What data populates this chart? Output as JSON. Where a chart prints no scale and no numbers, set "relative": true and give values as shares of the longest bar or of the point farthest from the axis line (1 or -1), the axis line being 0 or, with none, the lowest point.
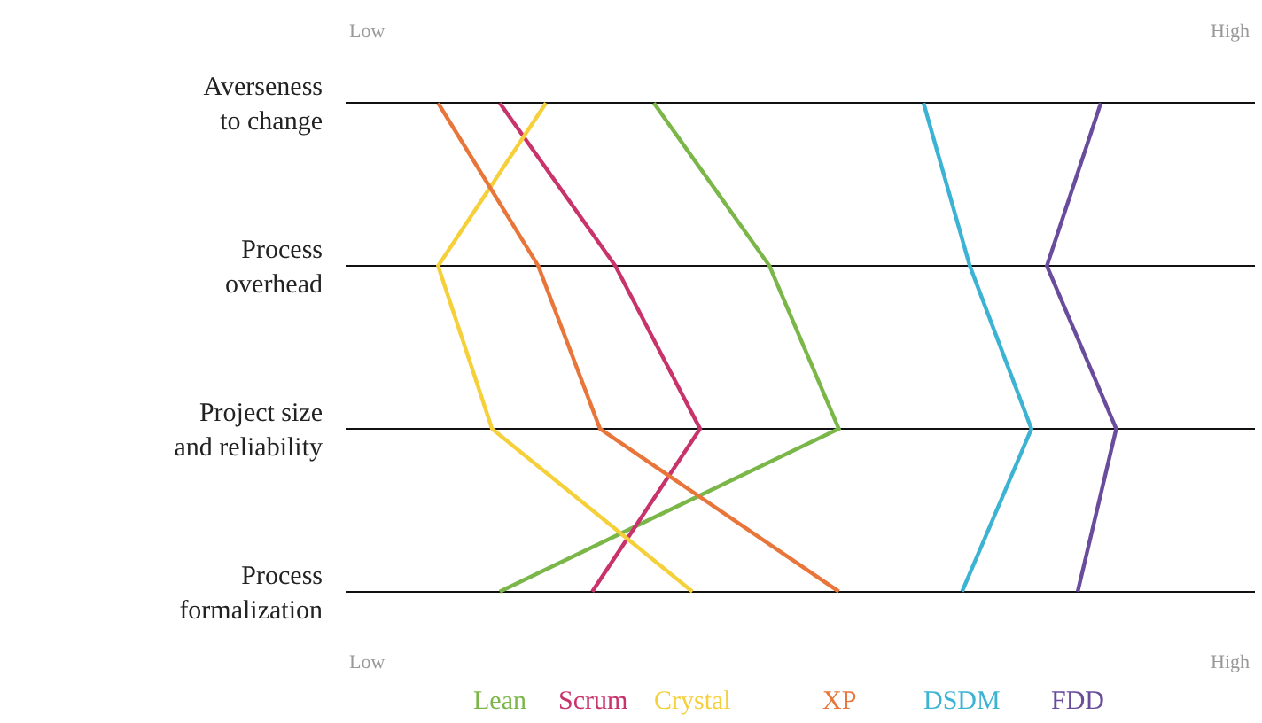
{
  "chart_data": {
    "type": "line",
    "orientation": "horizontal",
    "relative": true,
    "grid": "y",
    "legend": false,
    "categories": [
      "Averseness\nto change",
      "Process\noverhead",
      "Project size\nand reliability",
      "Process\nformalization"
    ],
    "annotations": [
      "Low",
      "High",
      "Low",
      "High"
    ],
    "series": [
      {
        "name": "Lean",
        "color": "#7ab648",
        "values": [
          0.4,
          0.55,
          0.64,
          0.2
        ]
      },
      {
        "name": "Scrum",
        "color": "#c8336b",
        "values": [
          0.2,
          0.35,
          0.46,
          0.32
        ]
      },
      {
        "name": "Crystal",
        "color": "#f5d03a",
        "values": [
          0.26,
          0.12,
          0.19,
          0.45
        ]
      },
      {
        "name": "XP",
        "color": "#e8763a",
        "values": [
          0.12,
          0.25,
          0.33,
          0.64
        ]
      },
      {
        "name": "DSDM",
        "color": "#3db3d4",
        "values": [
          0.75,
          0.81,
          0.89,
          0.8
        ]
      },
      {
        "name": "FDD",
        "color": "#6a4c9c",
        "values": [
          0.98,
          0.91,
          1.0,
          0.95
        ]
      }
    ]
  }
}
